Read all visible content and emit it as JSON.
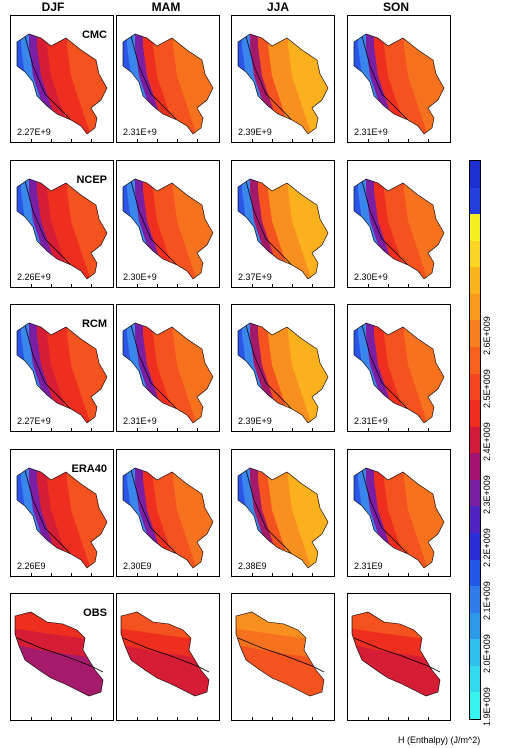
{
  "chart_data": {
    "type": "heatmap",
    "seasons": [
      "DJF",
      "MAM",
      "JJA",
      "SON"
    ],
    "rows": [
      {
        "source": "CMC",
        "means": [
          "2.27E+9",
          "2.31E+9",
          "2.39E+9",
          "2.31E+9"
        ]
      },
      {
        "source": "NCEP",
        "means": [
          "2.26E+9",
          "2.30E+9",
          "2.37E+9",
          "2.30E+9"
        ]
      },
      {
        "source": "RCM",
        "means": [
          "2.27E+9",
          "2.31E+9",
          "2.39E+9",
          "2.31E+9"
        ]
      },
      {
        "source": "ERA40",
        "means": [
          "2.26E9",
          "2.30E9",
          "2.38E9",
          "2.31E9"
        ]
      },
      {
        "source": "OBS",
        "means": [
          "",
          "",
          "",
          ""
        ]
      }
    ],
    "colorbar": {
      "label": "H (Enthalpy) (J/m^2)",
      "range": [
        1900000000.0,
        2700000000.0
      ],
      "tick_labels": [
        "1.9E+009",
        "2.0E+009",
        "2.1E+009",
        "2.2E+009",
        "2.3E+009",
        "2.4E+009",
        "2.5E+009",
        "2.6E+009"
      ],
      "colors": [
        "#38f4ee",
        "#34dbee",
        "#30bfee",
        "#2b99e8",
        "#2f7cea",
        "#2258e6",
        "#2a2cd8",
        "#4f24c0",
        "#7a1ea3",
        "#a21470",
        "#d11b3a",
        "#ef2e20",
        "#f4461f",
        "#f7621f",
        "#f97f1f",
        "#fa9a1e",
        "#fbb41d",
        "#fcd424",
        "#f7f020",
        "#2440dc",
        "#1e2fd2"
      ]
    }
  }
}
